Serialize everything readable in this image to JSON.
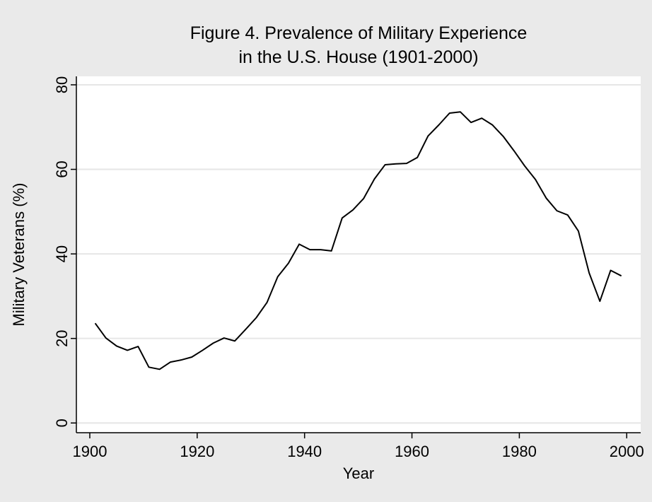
{
  "chart_data": {
    "type": "line",
    "title": [
      "Figure 4. Prevalence of Military Experience",
      "in the U.S. House (1901-2000)"
    ],
    "xlabel": "Year",
    "ylabel": "Military Veterans (%)",
    "x": [
      1901,
      1903,
      1905,
      1907,
      1909,
      1911,
      1913,
      1915,
      1917,
      1919,
      1921,
      1923,
      1925,
      1927,
      1929,
      1931,
      1933,
      1935,
      1937,
      1939,
      1941,
      1943,
      1945,
      1947,
      1949,
      1951,
      1953,
      1955,
      1957,
      1959,
      1961,
      1963,
      1965,
      1967,
      1969,
      1971,
      1973,
      1975,
      1977,
      1979,
      1981,
      1983,
      1985,
      1987,
      1989,
      1991,
      1993,
      1995,
      1997,
      1999
    ],
    "series": [
      {
        "color": "#000000",
        "values": [
          23.6,
          20.1,
          18.2,
          17.2,
          18.1,
          13.2,
          12.7,
          14.4,
          14.9,
          15.6,
          17.2,
          18.9,
          20.1,
          19.4,
          22.1,
          24.9,
          28.5,
          34.6,
          37.8,
          42.3,
          41.0,
          41.0,
          40.7,
          48.5,
          50.4,
          53.1,
          57.7,
          61.1,
          61.3,
          61.4,
          62.8,
          67.9,
          70.5,
          73.3,
          73.6,
          71.1,
          72.1,
          70.5,
          67.8,
          64.4,
          60.8,
          57.6,
          53.2,
          50.2,
          49.2,
          45.4,
          35.5,
          28.8,
          36.1,
          34.8
        ]
      }
    ],
    "xlim": [
      1897.5,
      2002.6
    ],
    "xticks": [
      1900,
      1920,
      1940,
      1960,
      1980,
      2000
    ],
    "ylim": [
      -2.3,
      82.0
    ],
    "yticks": [
      0,
      20,
      40,
      60,
      80
    ],
    "grid": true
  }
}
